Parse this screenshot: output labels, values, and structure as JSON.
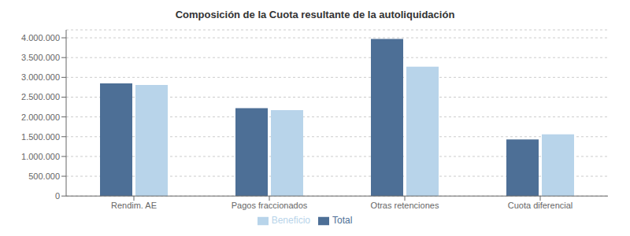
{
  "chart_data": {
    "type": "bar",
    "title": "Composición de la Cuota resultante de la autoliquidación",
    "categories": [
      "Rendim. AE",
      "Pagos fraccionados",
      "Otras retenciones",
      "Cuota diferencial"
    ],
    "series": [
      {
        "name": "Total",
        "color": "#4d6f96",
        "values": [
          2850000,
          2220000,
          3970000,
          1430000
        ]
      },
      {
        "name": "Beneficio",
        "color": "#b8d4ea",
        "values": [
          2810000,
          2170000,
          3270000,
          1560000
        ]
      }
    ],
    "ylim": [
      0,
      4200000
    ],
    "yticks": [
      0,
      {
        "value": 500000,
        "label": "500.000"
      },
      {
        "value": 1000000,
        "label": "1.000.000"
      },
      {
        "value": 1500000,
        "label": "1.500.000"
      },
      {
        "value": 2000000,
        "label": "2.000.000"
      },
      {
        "value": 2500000,
        "label": "2.500.000"
      },
      {
        "value": 3000000,
        "label": "3.000.000"
      },
      {
        "value": 3500000,
        "label": "3.500.000"
      },
      {
        "value": 4000000,
        "label": "4.000.000"
      }
    ],
    "grid": true,
    "legend": "bottom"
  }
}
